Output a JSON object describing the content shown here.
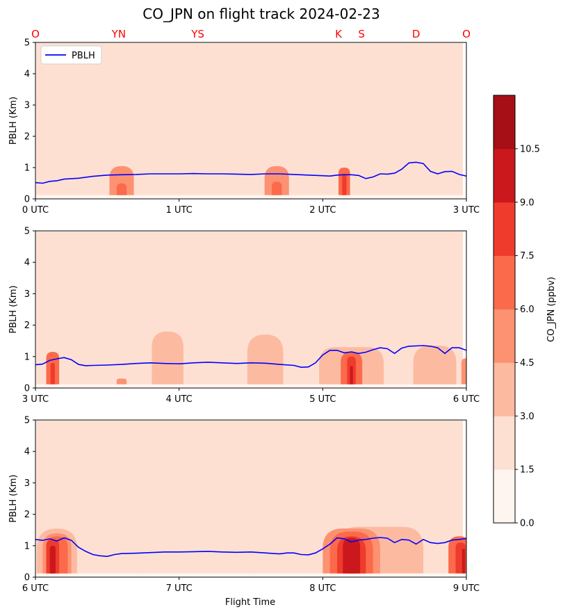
{
  "chart_data": {
    "type": "heatmap",
    "title": "CO_JPN on flight track 2024-02-23",
    "xlabel": "Flight Time",
    "ylabel": "PBLH (Km)",
    "legend": {
      "label": "PBLH",
      "position": "upper-left (top panel)"
    },
    "colorbar": {
      "label": "CO_JPN (ppbv)",
      "ticks": [
        "0.0",
        "1.5",
        "3.0",
        "4.5",
        "6.0",
        "7.5",
        "9.0",
        "10.5"
      ],
      "levels": [
        0,
        1.5,
        3.0,
        4.5,
        6.0,
        7.5,
        9.0,
        10.5
      ],
      "colors": [
        "#fff5f0",
        "#fee0d2",
        "#fcbba1",
        "#fc9272",
        "#fb6a4a",
        "#ef3b2c",
        "#cb181d",
        "#a50f15"
      ]
    },
    "site_labels": [
      {
        "text": "O",
        "time": 0.0
      },
      {
        "text": "YN",
        "time": 0.58
      },
      {
        "text": "YS",
        "time": 1.13
      },
      {
        "text": "K",
        "time": 2.11
      },
      {
        "text": "S",
        "time": 2.27
      },
      {
        "text": "D",
        "time": 2.65
      },
      {
        "text": "O",
        "time": 3.0
      }
    ],
    "ylim": [
      0,
      5
    ],
    "yticks": [
      "0",
      "1",
      "2",
      "3",
      "4",
      "5"
    ],
    "panels": [
      {
        "xlim": [
          0,
          3
        ],
        "xticks": [
          "0 UTC",
          "1 UTC",
          "2 UTC",
          "3 UTC"
        ],
        "pblh": [
          [
            0,
            0.52
          ],
          [
            0.05,
            0.5
          ],
          [
            0.1,
            0.56
          ],
          [
            0.15,
            0.58
          ],
          [
            0.2,
            0.63
          ],
          [
            0.3,
            0.66
          ],
          [
            0.4,
            0.72
          ],
          [
            0.5,
            0.76
          ],
          [
            0.6,
            0.77
          ],
          [
            0.7,
            0.78
          ],
          [
            0.8,
            0.8
          ],
          [
            0.9,
            0.8
          ],
          [
            1.0,
            0.8
          ],
          [
            1.1,
            0.81
          ],
          [
            1.2,
            0.8
          ],
          [
            1.3,
            0.8
          ],
          [
            1.4,
            0.79
          ],
          [
            1.5,
            0.78
          ],
          [
            1.6,
            0.8
          ],
          [
            1.7,
            0.8
          ],
          [
            1.8,
            0.78
          ],
          [
            1.9,
            0.76
          ],
          [
            2.0,
            0.74
          ],
          [
            2.05,
            0.73
          ],
          [
            2.1,
            0.76
          ],
          [
            2.15,
            0.77
          ],
          [
            2.2,
            0.77
          ],
          [
            2.25,
            0.75
          ],
          [
            2.3,
            0.65
          ],
          [
            2.35,
            0.7
          ],
          [
            2.4,
            0.8
          ],
          [
            2.45,
            0.79
          ],
          [
            2.5,
            0.82
          ],
          [
            2.55,
            0.95
          ],
          [
            2.6,
            1.15
          ],
          [
            2.65,
            1.17
          ],
          [
            2.7,
            1.13
          ],
          [
            2.75,
            0.88
          ],
          [
            2.8,
            0.8
          ],
          [
            2.85,
            0.87
          ],
          [
            2.9,
            0.88
          ],
          [
            2.95,
            0.78
          ],
          [
            3.0,
            0.73
          ]
        ],
        "blobs": [
          {
            "t": 0.6,
            "w": 0.17,
            "h": 1.05,
            "v": 4.7
          },
          {
            "t": 0.6,
            "w": 0.07,
            "h": 0.5,
            "v": 6.2
          },
          {
            "t": 1.18,
            "w": 0.32,
            "h": 2.7,
            "v": 1.9
          },
          {
            "t": 1.68,
            "w": 0.17,
            "h": 1.05,
            "v": 4.7
          },
          {
            "t": 1.68,
            "w": 0.07,
            "h": 0.55,
            "v": 6.2
          },
          {
            "t": 2.15,
            "w": 0.08,
            "h": 1.0,
            "v": 6.5
          },
          {
            "t": 2.15,
            "w": 0.03,
            "h": 0.8,
            "v": 7.8
          }
        ]
      },
      {
        "xlim": [
          3,
          6
        ],
        "xticks": [
          "3 UTC",
          "4 UTC",
          "5 UTC",
          "6 UTC"
        ],
        "pblh": [
          [
            3.0,
            0.74
          ],
          [
            3.05,
            0.76
          ],
          [
            3.1,
            0.88
          ],
          [
            3.15,
            0.93
          ],
          [
            3.2,
            0.97
          ],
          [
            3.25,
            0.9
          ],
          [
            3.3,
            0.75
          ],
          [
            3.35,
            0.71
          ],
          [
            3.4,
            0.72
          ],
          [
            3.5,
            0.73
          ],
          [
            3.6,
            0.75
          ],
          [
            3.7,
            0.78
          ],
          [
            3.8,
            0.8
          ],
          [
            3.9,
            0.78
          ],
          [
            4.0,
            0.77
          ],
          [
            4.1,
            0.8
          ],
          [
            4.2,
            0.82
          ],
          [
            4.3,
            0.8
          ],
          [
            4.4,
            0.78
          ],
          [
            4.5,
            0.8
          ],
          [
            4.6,
            0.79
          ],
          [
            4.7,
            0.75
          ],
          [
            4.8,
            0.72
          ],
          [
            4.85,
            0.66
          ],
          [
            4.9,
            0.67
          ],
          [
            4.95,
            0.8
          ],
          [
            5.0,
            1.05
          ],
          [
            5.05,
            1.2
          ],
          [
            5.1,
            1.2
          ],
          [
            5.15,
            1.12
          ],
          [
            5.2,
            1.15
          ],
          [
            5.25,
            1.1
          ],
          [
            5.3,
            1.14
          ],
          [
            5.35,
            1.22
          ],
          [
            5.4,
            1.28
          ],
          [
            5.45,
            1.25
          ],
          [
            5.5,
            1.1
          ],
          [
            5.55,
            1.27
          ],
          [
            5.6,
            1.33
          ],
          [
            5.7,
            1.35
          ],
          [
            5.75,
            1.33
          ],
          [
            5.8,
            1.28
          ],
          [
            5.85,
            1.1
          ],
          [
            5.9,
            1.28
          ],
          [
            5.95,
            1.28
          ],
          [
            6.0,
            1.2
          ]
        ],
        "blobs": [
          {
            "t": 3.12,
            "w": 0.09,
            "h": 1.15,
            "v": 6.2
          },
          {
            "t": 3.12,
            "w": 0.03,
            "h": 0.8,
            "v": 7.8
          },
          {
            "t": 3.6,
            "w": 0.07,
            "h": 0.3,
            "v": 4.7
          },
          {
            "t": 3.92,
            "w": 0.22,
            "h": 1.8,
            "v": 3.2
          },
          {
            "t": 4.6,
            "w": 0.25,
            "h": 1.7,
            "v": 3.2
          },
          {
            "t": 5.2,
            "w": 0.45,
            "h": 1.3,
            "v": 3.5
          },
          {
            "t": 5.78,
            "w": 0.3,
            "h": 1.35,
            "v": 3.2
          },
          {
            "t": 5.2,
            "w": 0.15,
            "h": 1.15,
            "v": 6.3
          },
          {
            "t": 5.2,
            "w": 0.06,
            "h": 1.0,
            "v": 8.5
          },
          {
            "t": 5.2,
            "w": 0.02,
            "h": 0.7,
            "v": 10.0
          },
          {
            "t": 6.0,
            "w": 0.07,
            "h": 0.95,
            "v": 4.8
          },
          {
            "t": 4.15,
            "w": 0.04,
            "h": 2.3,
            "v": 1.7
          }
        ]
      },
      {
        "xlim": [
          6,
          9
        ],
        "xticks": [
          "6 UTC",
          "7 UTC",
          "8 UTC",
          "9 UTC"
        ],
        "pblh": [
          [
            6.0,
            1.2
          ],
          [
            6.05,
            1.17
          ],
          [
            6.1,
            1.22
          ],
          [
            6.15,
            1.15
          ],
          [
            6.2,
            1.25
          ],
          [
            6.25,
            1.17
          ],
          [
            6.3,
            0.95
          ],
          [
            6.35,
            0.82
          ],
          [
            6.4,
            0.72
          ],
          [
            6.45,
            0.68
          ],
          [
            6.5,
            0.66
          ],
          [
            6.55,
            0.72
          ],
          [
            6.6,
            0.75
          ],
          [
            6.7,
            0.76
          ],
          [
            6.8,
            0.78
          ],
          [
            6.9,
            0.8
          ],
          [
            7.0,
            0.8
          ],
          [
            7.1,
            0.81
          ],
          [
            7.2,
            0.82
          ],
          [
            7.3,
            0.8
          ],
          [
            7.4,
            0.79
          ],
          [
            7.5,
            0.8
          ],
          [
            7.6,
            0.77
          ],
          [
            7.7,
            0.74
          ],
          [
            7.75,
            0.77
          ],
          [
            7.8,
            0.77
          ],
          [
            7.85,
            0.72
          ],
          [
            7.9,
            0.71
          ],
          [
            7.95,
            0.77
          ],
          [
            8.0,
            0.9
          ],
          [
            8.05,
            1.05
          ],
          [
            8.1,
            1.25
          ],
          [
            8.15,
            1.22
          ],
          [
            8.2,
            1.12
          ],
          [
            8.25,
            1.18
          ],
          [
            8.3,
            1.2
          ],
          [
            8.35,
            1.24
          ],
          [
            8.4,
            1.26
          ],
          [
            8.45,
            1.24
          ],
          [
            8.5,
            1.1
          ],
          [
            8.55,
            1.2
          ],
          [
            8.6,
            1.18
          ],
          [
            8.65,
            1.05
          ],
          [
            8.7,
            1.2
          ],
          [
            8.75,
            1.1
          ],
          [
            8.8,
            1.07
          ],
          [
            8.85,
            1.1
          ],
          [
            8.9,
            1.18
          ],
          [
            8.95,
            1.2
          ],
          [
            9.0,
            1.23
          ]
        ],
        "blobs": [
          {
            "t": 6.15,
            "w": 0.28,
            "h": 1.55,
            "v": 3.2
          },
          {
            "t": 6.15,
            "w": 0.2,
            "h": 1.4,
            "v": 4.7
          },
          {
            "t": 6.15,
            "w": 0.15,
            "h": 1.3,
            "v": 6.2
          },
          {
            "t": 6.12,
            "w": 0.09,
            "h": 1.2,
            "v": 8.0
          },
          {
            "t": 6.12,
            "w": 0.04,
            "h": 1.0,
            "v": 9.6
          },
          {
            "t": 6.12,
            "w": 0.02,
            "h": 0.75,
            "v": 10.3
          },
          {
            "t": 8.4,
            "w": 0.6,
            "h": 1.6,
            "v": 3.2
          },
          {
            "t": 8.2,
            "w": 0.4,
            "h": 1.55,
            "v": 4.7
          },
          {
            "t": 8.2,
            "w": 0.3,
            "h": 1.45,
            "v": 6.2
          },
          {
            "t": 8.2,
            "w": 0.2,
            "h": 1.3,
            "v": 7.7
          },
          {
            "t": 8.2,
            "w": 0.12,
            "h": 1.25,
            "v": 9.2
          },
          {
            "t": 8.2,
            "w": 0.05,
            "h": 1.0,
            "v": 10.1
          },
          {
            "t": 8.95,
            "w": 0.15,
            "h": 1.3,
            "v": 6.2
          },
          {
            "t": 8.96,
            "w": 0.07,
            "h": 1.1,
            "v": 8.0
          },
          {
            "t": 8.98,
            "w": 0.02,
            "h": 0.9,
            "v": 9.6
          },
          {
            "t": 6.75,
            "w": 0.08,
            "h": 1.7,
            "v": 2.8
          },
          {
            "t": 7.5,
            "w": 0.08,
            "h": 1.6,
            "v": 2.8
          }
        ]
      }
    ]
  }
}
